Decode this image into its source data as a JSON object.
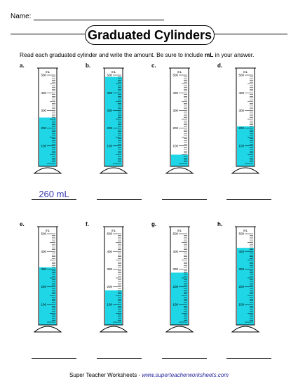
{
  "header": {
    "name_label": "Name:"
  },
  "title": "Graduated Cylinders",
  "instructions": {
    "before": "Read each graduated cylinder and write the amount.  Be sure to include ",
    "bold": "mL",
    "after": " in your answer."
  },
  "cylinders": [
    {
      "letter": "a.",
      "unit": "mL",
      "fill_ml": 260,
      "answer": "260 mL"
    },
    {
      "letter": "b.",
      "unit": "mL",
      "fill_ml": 490,
      "answer": ""
    },
    {
      "letter": "c.",
      "unit": "mL",
      "fill_ml": 50,
      "answer": ""
    },
    {
      "letter": "d.",
      "unit": "mL",
      "fill_ml": 210,
      "answer": ""
    },
    {
      "letter": "e.",
      "unit": "mL",
      "fill_ml": 310,
      "answer": ""
    },
    {
      "letter": "f.",
      "unit": "mL",
      "fill_ml": 180,
      "answer": ""
    },
    {
      "letter": "g.",
      "unit": "mL",
      "fill_ml": 280,
      "answer": ""
    },
    {
      "letter": "h.",
      "unit": "mL",
      "fill_ml": 420,
      "answer": ""
    }
  ],
  "scale": {
    "max_ml": 500,
    "labels": [
      "500",
      "400",
      "300",
      "200",
      "100"
    ]
  },
  "colors": {
    "liquid": "#1fd6e6",
    "answer_ink": "#3b3bb0"
  },
  "footer": {
    "prefix": "Super Teacher Worksheets  - ",
    "url": "www.superteacherworksheets.com"
  }
}
